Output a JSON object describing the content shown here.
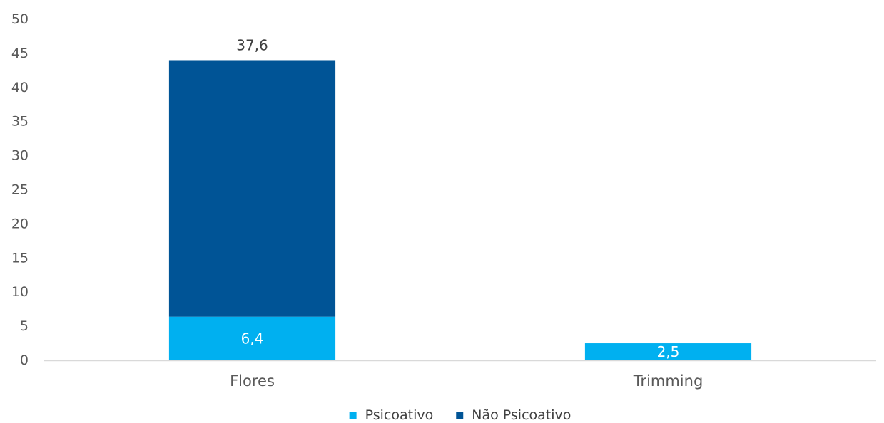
{
  "chart_data": {
    "type": "bar",
    "stacked": true,
    "categories": [
      "Flores",
      "Trimming"
    ],
    "series": [
      {
        "name": "Psicoativo",
        "values": [
          6.4,
          2.5
        ],
        "labels": [
          "6,4",
          "2,5"
        ],
        "color": "#00B0F0",
        "label_color": "#FFFFFF"
      },
      {
        "name": "Não Psicoativo",
        "values": [
          37.6,
          null
        ],
        "labels": [
          "37,6",
          ""
        ],
        "color": "#005496",
        "label_color": "#404040"
      }
    ],
    "ylim": [
      0,
      50
    ],
    "yticks": [
      0,
      5,
      10,
      15,
      20,
      25,
      30,
      35,
      40,
      45,
      50
    ],
    "title": "",
    "xlabel": "",
    "ylabel": "",
    "grid": false,
    "legend_position": "bottom"
  }
}
